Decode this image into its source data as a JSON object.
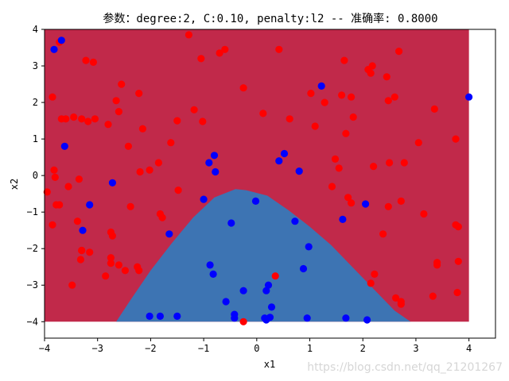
{
  "chart_data": {
    "type": "scatter",
    "title": "参数：degree:2, C:0.10, penalty:l2 -- 准确率: 0.8000",
    "xlabel": "x1",
    "ylabel": "x2",
    "xlim": [
      -4,
      4.5
    ],
    "ylim": [
      -4.45,
      4
    ],
    "x_ticks": [
      -4,
      -3,
      -2,
      -1,
      0,
      1,
      2,
      3,
      4
    ],
    "y_ticks": [
      4,
      3,
      2,
      1,
      0,
      -1,
      -2,
      -3,
      -4
    ],
    "grid": false,
    "legend": "none",
    "region_extent": {
      "x": [
        -4,
        4
      ],
      "y": [
        -4,
        4
      ]
    },
    "decision_boundary": {
      "x": [
        -2.65,
        -2.4,
        -2.0,
        -1.6,
        -1.2,
        -0.8,
        -0.4,
        -0.2,
        0.2,
        0.6,
        1.0,
        1.4,
        1.8,
        2.2,
        2.6,
        2.9
      ],
      "y": [
        -4.0,
        -3.45,
        -2.6,
        -1.85,
        -1.15,
        -0.6,
        -0.37,
        -0.4,
        -0.55,
        -0.95,
        -1.4,
        -1.9,
        -2.5,
        -3.1,
        -3.7,
        -4.0
      ]
    },
    "region_colors": {
      "positive": "#c1294a",
      "negative": "#3d74b3"
    },
    "series": [
      {
        "color": "#ff0000",
        "x": [
          -3.85,
          -3.82,
          -3.68,
          -3.78,
          -3.95,
          -3.85,
          -3.8,
          -3.72,
          -3.55,
          -3.48,
          -3.38,
          -3.32,
          -3.3,
          -3.22,
          -3.15,
          -3.08,
          -3.05,
          -2.8,
          -2.75,
          -2.72,
          -2.65,
          -2.6,
          -2.55,
          -2.48,
          -2.42,
          -2.38,
          -2.22,
          -2.2,
          -2.15,
          -2.02,
          -1.85,
          -1.82,
          -1.78,
          -1.62,
          -1.5,
          -1.48,
          -1.28,
          -1.18,
          -1.05,
          -1.02,
          -0.7,
          -0.6,
          -0.25,
          0.12,
          0.42,
          0.62,
          1.02,
          1.1,
          1.28,
          1.42,
          1.48,
          1.55,
          1.6,
          1.65,
          1.68,
          1.78,
          1.82,
          2.1,
          2.15,
          2.18,
          2.2,
          2.38,
          2.45,
          2.48,
          2.5,
          2.6,
          2.68,
          2.72,
          2.78,
          3.05,
          3.15,
          3.32,
          3.35,
          3.4,
          3.75,
          3.8,
          3.8,
          3.78,
          -2.75,
          -2.75,
          -2.6,
          -2.85,
          -2.25,
          -2.22,
          -3.3,
          -3.35,
          -3.18,
          -3.6,
          -3.45,
          2.22,
          2.15,
          2.62,
          2.72,
          2.72,
          3.4,
          3.75,
          2.48,
          1.72,
          0.35,
          1.78,
          -0.25,
          -3.3,
          -3.72
        ],
        "y": [
          2.15,
          0.15,
          1.55,
          -0.8,
          -0.45,
          -1.35,
          -0.05,
          3.65,
          -0.3,
          -3.0,
          -1.25,
          -2.3,
          -2.05,
          3.15,
          -2.1,
          3.1,
          1.55,
          1.4,
          -1.55,
          -1.65,
          2.05,
          1.75,
          2.5,
          -2.6,
          0.8,
          -0.85,
          2.25,
          0.1,
          1.28,
          0.15,
          0.35,
          -1.05,
          -1.15,
          0.9,
          1.5,
          -0.4,
          3.85,
          1.8,
          3.2,
          1.48,
          3.35,
          3.45,
          2.4,
          1.7,
          3.45,
          1.55,
          2.25,
          1.35,
          2.0,
          -0.3,
          0.45,
          0.2,
          2.2,
          3.15,
          1.15,
          2.15,
          1.6,
          2.9,
          2.8,
          3.0,
          0.25,
          -1.6,
          2.7,
          2.05,
          0.35,
          2.15,
          3.4,
          -0.7,
          0.35,
          0.9,
          -1.05,
          -3.3,
          1.82,
          -2.45,
          1.0,
          -1.4,
          -2.35,
          -3.2,
          -2.25,
          -2.4,
          -2.45,
          -2.75,
          -2.5,
          -2.6,
          -2.05,
          -0.1,
          1.48,
          1.55,
          1.6,
          -2.7,
          -2.95,
          -3.35,
          -3.45,
          -3.52,
          -2.38,
          -1.35,
          -0.85,
          -0.6,
          -2.75,
          -0.75,
          -4.0,
          1.55,
          -0.8
        ]
      },
      {
        "color": "#0000ff",
        "x": [
          -3.68,
          -3.82,
          -3.62,
          -3.15,
          -3.28,
          -2.72,
          -1.65,
          -1.82,
          -2.02,
          -1.5,
          -1.0,
          -0.9,
          -0.8,
          -0.78,
          -0.88,
          -0.82,
          -0.58,
          -0.48,
          -0.42,
          -0.42,
          -0.25,
          -0.02,
          0.15,
          0.18,
          0.22,
          0.25,
          0.28,
          0.42,
          0.52,
          0.72,
          0.8,
          0.88,
          0.95,
          0.98,
          1.22,
          1.62,
          1.68,
          2.05,
          2.08,
          4.0,
          0.18
        ],
        "y": [
          3.7,
          3.45,
          0.8,
          -0.8,
          -1.5,
          -0.2,
          -1.6,
          -3.85,
          -3.85,
          -3.85,
          -0.65,
          0.35,
          0.55,
          0.1,
          -2.45,
          -2.7,
          -3.45,
          -1.3,
          -3.8,
          -3.9,
          -3.15,
          -0.7,
          -3.9,
          -3.15,
          -3.0,
          -3.88,
          -3.6,
          0.4,
          0.6,
          -1.25,
          0.12,
          -2.55,
          -3.9,
          -1.95,
          2.45,
          -1.2,
          -3.9,
          -0.78,
          -3.95,
          2.15,
          -3.95
        ]
      }
    ]
  },
  "watermark": "https://blog.csdn.net/qq_21201267"
}
